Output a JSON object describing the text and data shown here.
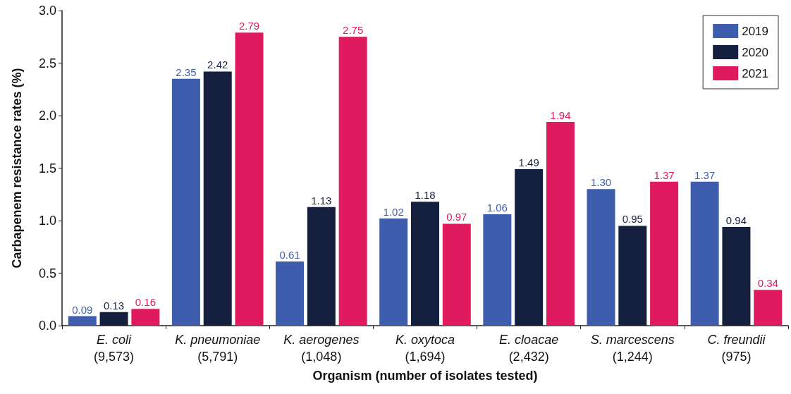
{
  "chart_data": {
    "type": "bar",
    "xlabel": "Organism (number of isolates tested)",
    "ylabel": "Carbapenem resistance rates (%)",
    "categories": [
      "E. coli\n(9,573)",
      "K. pneumoniae\n(5,791)",
      "K. aerogenes\n(1,048)",
      "K. oxytoca\n(1,694)",
      "E. cloacae\n(2,432)",
      "S. marcescens\n(1,244)",
      "C. freundii\n(975)"
    ],
    "series": [
      {
        "name": "2019",
        "color": "#3e5ead",
        "values": [
          0.09,
          2.35,
          0.61,
          1.02,
          1.06,
          1.3,
          1.37
        ],
        "value_labels": [
          "0.09",
          "2.35",
          "0.61",
          "1.02",
          "1.06",
          "1.30",
          "1.37"
        ]
      },
      {
        "name": "2020",
        "color": "#15203f",
        "values": [
          0.13,
          2.42,
          1.13,
          1.18,
          1.49,
          0.95,
          0.94
        ],
        "value_labels": [
          "0.13",
          "2.42",
          "1.13",
          "1.18",
          "1.49",
          "0.95",
          "0.94"
        ]
      },
      {
        "name": "2021",
        "color": "#e01a5f",
        "values": [
          0.16,
          2.79,
          2.75,
          0.97,
          1.94,
          1.37,
          0.34
        ],
        "value_labels": [
          "0.16",
          "2.79",
          "2.75",
          "0.97",
          "1.94",
          "1.37",
          "0.34"
        ]
      }
    ],
    "ylim": [
      0,
      3
    ],
    "yticks": [
      {
        "value": 0,
        "label": "0.0"
      },
      {
        "value": 0.5,
        "label": "0.5"
      },
      {
        "value": 1,
        "label": "1.0"
      },
      {
        "value": 1.5,
        "label": "1.5"
      },
      {
        "value": 2,
        "label": "2.0"
      },
      {
        "value": 2.5,
        "label": "2.5"
      },
      {
        "value": 3,
        "label": "3.0"
      }
    ],
    "grid": false,
    "legend": "top right"
  }
}
